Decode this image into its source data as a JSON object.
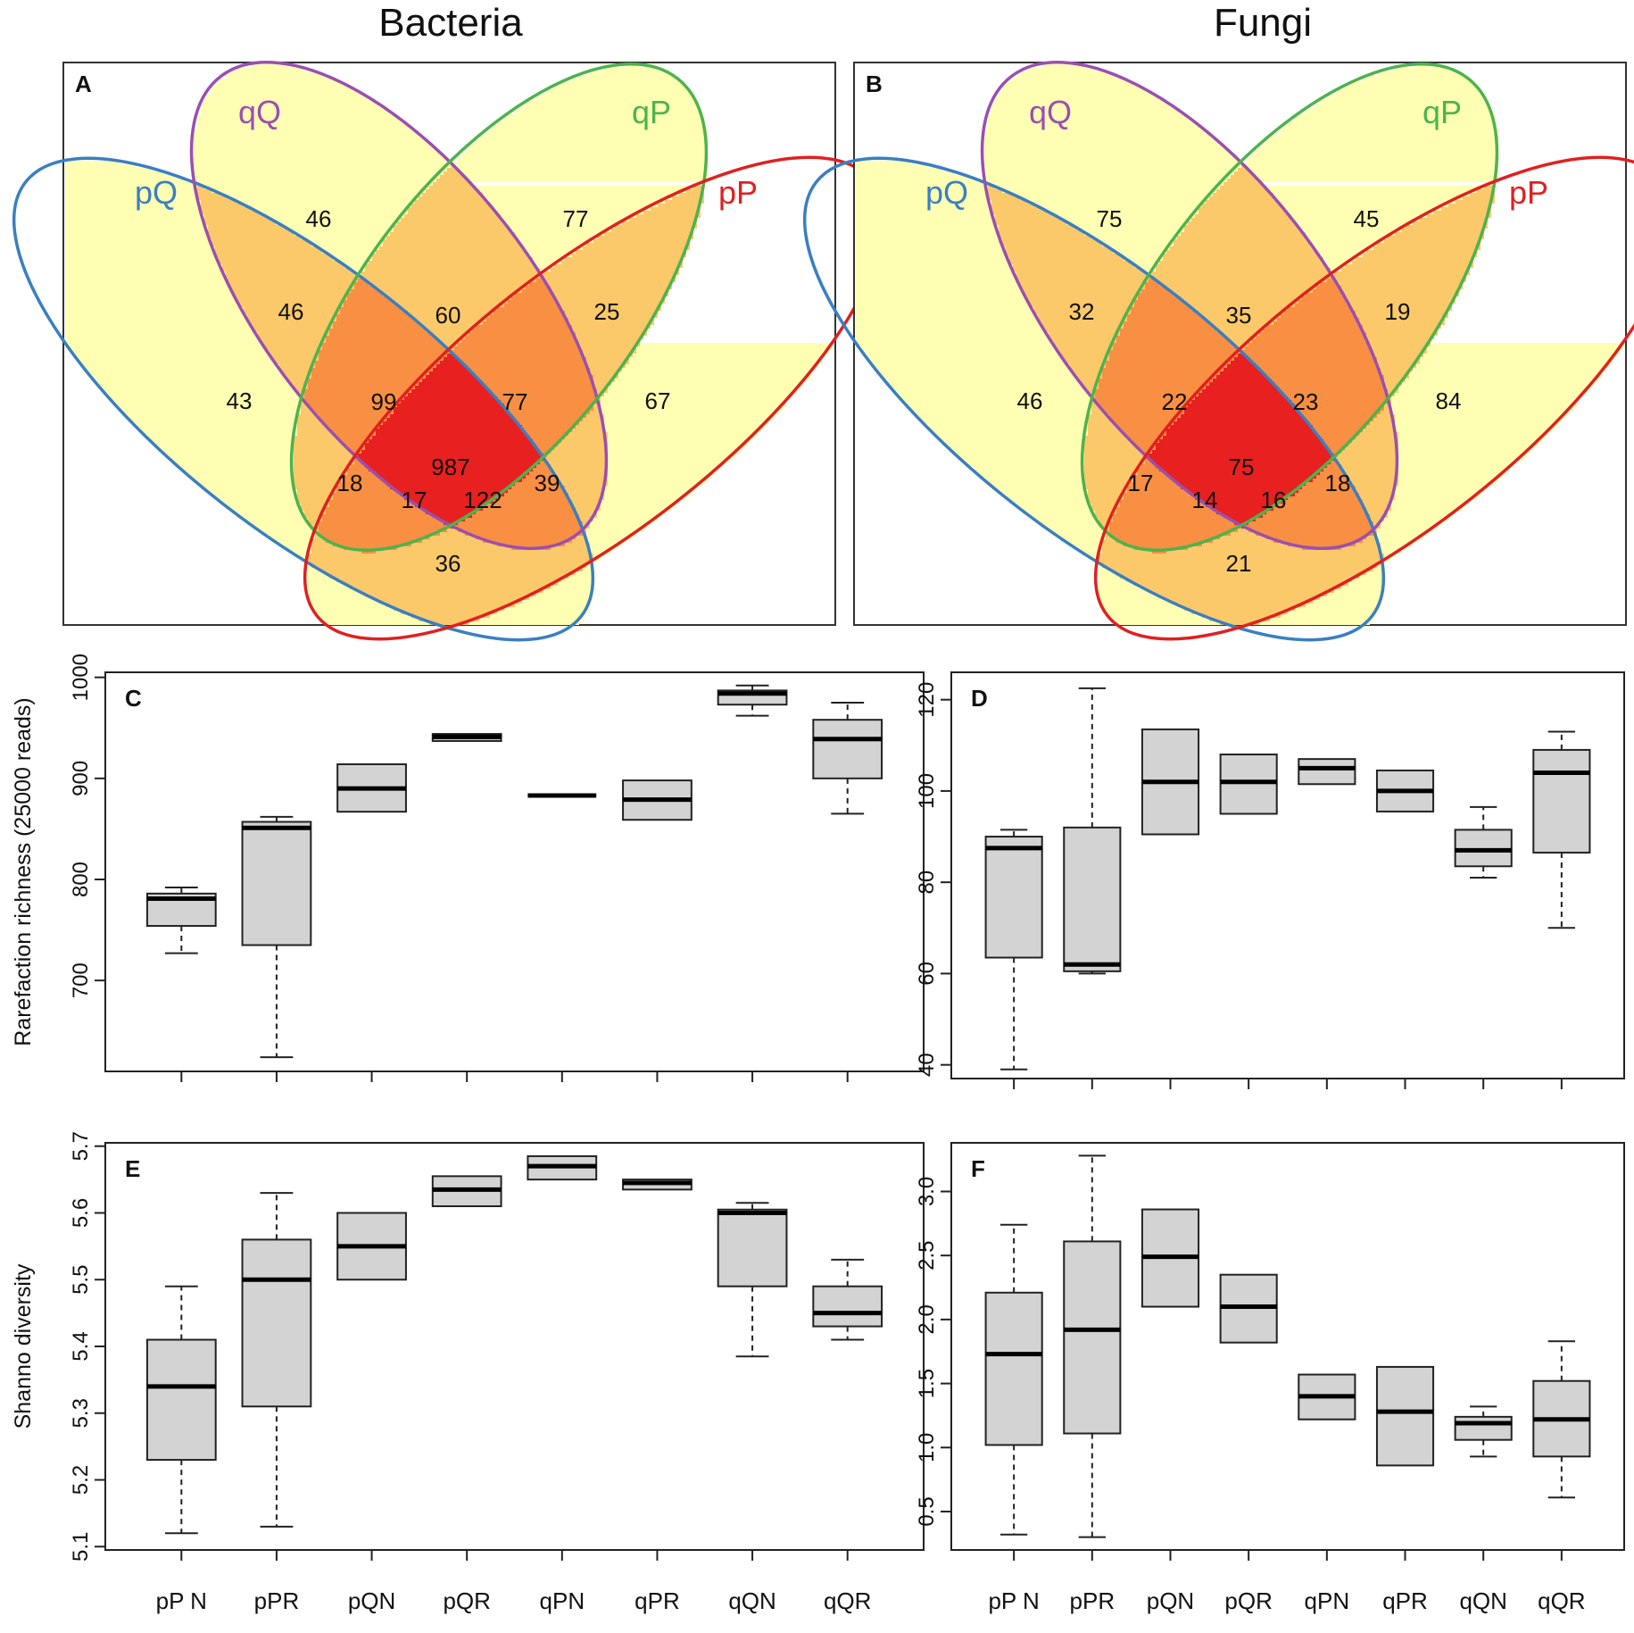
{
  "headers": {
    "left": "Bacteria",
    "right": "Fungi"
  },
  "chart_data": [
    {
      "type": "venn",
      "panel": "A",
      "title": "Bacteria",
      "sets": [
        {
          "name": "pQ",
          "color": "#3a7fc1"
        },
        {
          "name": "qQ",
          "color": "#9b4fb0"
        },
        {
          "name": "qP",
          "color": "#4db34d"
        },
        {
          "name": "pP",
          "color": "#e02020"
        }
      ],
      "regions": [
        {
          "sets": [
            "qQ"
          ],
          "value": "46"
        },
        {
          "sets": [
            "qP"
          ],
          "value": "77"
        },
        {
          "sets": [
            "pQ"
          ],
          "value": "43"
        },
        {
          "sets": [
            "pP"
          ],
          "value": "67"
        },
        {
          "sets": [
            "pQ",
            "qQ"
          ],
          "value": "46"
        },
        {
          "sets": [
            "qQ",
            "qP"
          ],
          "value": "60"
        },
        {
          "sets": [
            "qP",
            "pP"
          ],
          "value": "25"
        },
        {
          "sets": [
            "pQ",
            "qQ",
            "qP"
          ],
          "value": "99"
        },
        {
          "sets": [
            "qQ",
            "qP",
            "pP"
          ],
          "value": "77"
        },
        {
          "sets": [
            "pQ",
            "qP"
          ],
          "value": "18"
        },
        {
          "sets": [
            "pQ",
            "qQ",
            "qP",
            "pP"
          ],
          "value": "987"
        },
        {
          "sets": [
            "qQ",
            "pP"
          ],
          "value": "39"
        },
        {
          "sets": [
            "pQ",
            "qP",
            "pP"
          ],
          "value": "17"
        },
        {
          "sets": [
            "pQ",
            "qQ",
            "pP"
          ],
          "value": "122"
        },
        {
          "sets": [
            "pQ",
            "pP"
          ],
          "value": "36"
        }
      ]
    },
    {
      "type": "venn",
      "panel": "B",
      "title": "Fungi",
      "sets": [
        {
          "name": "pQ",
          "color": "#3a7fc1"
        },
        {
          "name": "qQ",
          "color": "#9b4fb0"
        },
        {
          "name": "qP",
          "color": "#4db34d"
        },
        {
          "name": "pP",
          "color": "#e02020"
        }
      ],
      "regions": [
        {
          "sets": [
            "qQ"
          ],
          "value": "75"
        },
        {
          "sets": [
            "qP"
          ],
          "value": "45"
        },
        {
          "sets": [
            "pQ"
          ],
          "value": "46"
        },
        {
          "sets": [
            "pP"
          ],
          "value": "84"
        },
        {
          "sets": [
            "pQ",
            "qQ"
          ],
          "value": "32"
        },
        {
          "sets": [
            "qQ",
            "qP"
          ],
          "value": "35"
        },
        {
          "sets": [
            "qP",
            "pP"
          ],
          "value": "19"
        },
        {
          "sets": [
            "pQ",
            "qQ",
            "qP"
          ],
          "value": "22"
        },
        {
          "sets": [
            "qQ",
            "qP",
            "pP"
          ],
          "value": "23"
        },
        {
          "sets": [
            "pQ",
            "qP"
          ],
          "value": "17"
        },
        {
          "sets": [
            "pQ",
            "qQ",
            "qP",
            "pP"
          ],
          "value": "75"
        },
        {
          "sets": [
            "qQ",
            "pP"
          ],
          "value": "18"
        },
        {
          "sets": [
            "pQ",
            "qP",
            "pP"
          ],
          "value": "14"
        },
        {
          "sets": [
            "pQ",
            "qQ",
            "pP"
          ],
          "value": "16"
        },
        {
          "sets": [
            "pQ",
            "pP"
          ],
          "value": "21"
        }
      ]
    },
    {
      "type": "boxplot",
      "panel": "C",
      "ylabel": "Rarefaction richness (25000 reads)",
      "ylim": [
        610,
        1005
      ],
      "yticks": [
        "700",
        "800",
        "900",
        "1000"
      ],
      "categories": [
        "pPN",
        "pPR",
        "pQN",
        "pQR",
        "qPN",
        "qPR",
        "qQN",
        "qQR"
      ],
      "boxes": [
        {
          "min": 727,
          "q1": 754,
          "median": 781,
          "q3": 786,
          "max": 792
        },
        {
          "min": 624,
          "q1": 735,
          "median": 851,
          "q3": 857,
          "max": 862
        },
        {
          "min": 867,
          "q1": 867,
          "median": 890,
          "q3": 914,
          "max": 914
        },
        {
          "min": 937,
          "q1": 937,
          "median": 941,
          "q3": 944,
          "max": 944
        },
        {
          "min": 883,
          "q1": 883,
          "median": 883,
          "q3": 883,
          "max": 883
        },
        {
          "min": 859,
          "q1": 859,
          "median": 879,
          "q3": 898,
          "max": 898
        },
        {
          "min": 962,
          "q1": 973,
          "median": 984,
          "q3": 987,
          "max": 992
        },
        {
          "min": 865,
          "q1": 900,
          "median": 939,
          "q3": 958,
          "max": 975
        }
      ]
    },
    {
      "type": "boxplot",
      "panel": "D",
      "ylabel": "",
      "ylim": [
        37,
        126
      ],
      "yticks": [
        "40",
        "60",
        "80",
        "100",
        "120"
      ],
      "categories": [
        "pPN",
        "pPR",
        "pQN",
        "pQR",
        "qPN",
        "qPR",
        "qQN",
        "qQR"
      ],
      "boxes": [
        {
          "min": 39,
          "q1": 63.5,
          "median": 87.5,
          "q3": 90,
          "max": 91.5
        },
        {
          "min": 60,
          "q1": 60.5,
          "median": 62,
          "q3": 92,
          "max": 122.5
        },
        {
          "min": 90.5,
          "q1": 90.5,
          "median": 102,
          "q3": 113.5,
          "max": 113.5
        },
        {
          "min": 95,
          "q1": 95,
          "median": 102,
          "q3": 108,
          "max": 108
        },
        {
          "min": 101.5,
          "q1": 101.5,
          "median": 105,
          "q3": 107,
          "max": 107
        },
        {
          "min": 95.5,
          "q1": 95.5,
          "median": 100,
          "q3": 104.5,
          "max": 104.5
        },
        {
          "min": 81,
          "q1": 83.5,
          "median": 87,
          "q3": 91.5,
          "max": 96.5
        },
        {
          "min": 70,
          "q1": 86.5,
          "median": 104,
          "q3": 109,
          "max": 113
        }
      ]
    },
    {
      "type": "boxplot",
      "panel": "E",
      "ylabel": "Shanno diversity",
      "ylim": [
        5.095,
        5.705
      ],
      "yticks": [
        "5.1",
        "5.2",
        "5.3",
        "5.4",
        "5.5",
        "5.6",
        "5.7"
      ],
      "categories": [
        "pPN",
        "pPR",
        "pQN",
        "pQR",
        "qPN",
        "qPR",
        "qQN",
        "qQR"
      ],
      "xticklabels": [
        "pP N",
        "pPR",
        "pQN",
        "pQR",
        "qPN",
        "qPR",
        "qQN",
        "qQR"
      ],
      "boxes": [
        {
          "min": 5.12,
          "q1": 5.23,
          "median": 5.34,
          "q3": 5.41,
          "max": 5.49
        },
        {
          "min": 5.13,
          "q1": 5.31,
          "median": 5.5,
          "q3": 5.56,
          "max": 5.63
        },
        {
          "min": 5.5,
          "q1": 5.5,
          "median": 5.55,
          "q3": 5.6,
          "max": 5.6
        },
        {
          "min": 5.61,
          "q1": 5.61,
          "median": 5.635,
          "q3": 5.655,
          "max": 5.655
        },
        {
          "min": 5.65,
          "q1": 5.65,
          "median": 5.67,
          "q3": 5.685,
          "max": 5.685
        },
        {
          "min": 5.635,
          "q1": 5.635,
          "median": 5.645,
          "q3": 5.65,
          "max": 5.65
        },
        {
          "min": 5.385,
          "q1": 5.49,
          "median": 5.6,
          "q3": 5.605,
          "max": 5.615
        },
        {
          "min": 5.41,
          "q1": 5.43,
          "median": 5.45,
          "q3": 5.49,
          "max": 5.53
        }
      ]
    },
    {
      "type": "boxplot",
      "panel": "F",
      "ylabel": "",
      "ylim": [
        0.2,
        3.38
      ],
      "yticks": [
        "0.5",
        "1.0",
        "1.5",
        "2.0",
        "2.5",
        "3.0"
      ],
      "categories": [
        "pPN",
        "pPR",
        "pQN",
        "pQR",
        "qPN",
        "qPR",
        "qQN",
        "qQR"
      ],
      "xticklabels": [
        "pP N",
        "pPR",
        "pQN",
        "pQR",
        "qPN",
        "qPR",
        "qQN",
        "qQR"
      ],
      "boxes": [
        {
          "min": 0.32,
          "q1": 1.02,
          "median": 1.73,
          "q3": 2.21,
          "max": 2.74
        },
        {
          "min": 0.3,
          "q1": 1.11,
          "median": 1.92,
          "q3": 2.61,
          "max": 3.28
        },
        {
          "min": 2.1,
          "q1": 2.1,
          "median": 2.49,
          "q3": 2.86,
          "max": 2.86
        },
        {
          "min": 1.82,
          "q1": 1.82,
          "median": 2.1,
          "q3": 2.35,
          "max": 2.35
        },
        {
          "min": 1.22,
          "q1": 1.22,
          "median": 1.4,
          "q3": 1.57,
          "max": 1.57
        },
        {
          "min": 0.86,
          "q1": 0.86,
          "median": 1.28,
          "q3": 1.63,
          "max": 1.63
        },
        {
          "min": 0.93,
          "q1": 1.06,
          "median": 1.19,
          "q3": 1.24,
          "max": 1.32
        },
        {
          "min": 0.61,
          "q1": 0.93,
          "median": 1.22,
          "q3": 1.52,
          "max": 1.83
        }
      ]
    }
  ]
}
